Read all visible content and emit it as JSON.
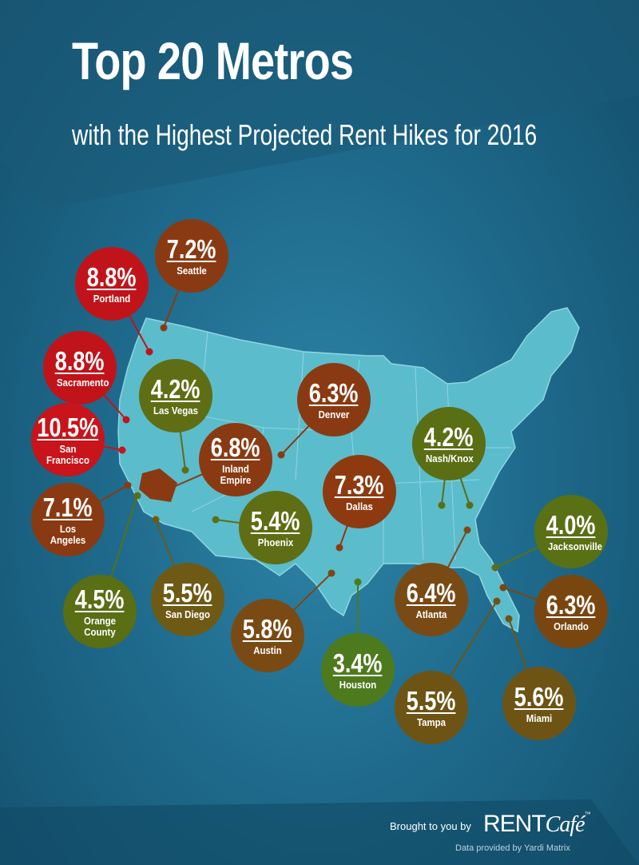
{
  "header": {
    "title": "Top 20 Metros",
    "subtitle": "with the Highest Projected Rent Hikes for 2016"
  },
  "metros": [
    {
      "rate": "7.2%",
      "city": "Seattle",
      "color": "#8a3a12"
    },
    {
      "rate": "8.8%",
      "city": "Portland",
      "color": "#c0141a"
    },
    {
      "rate": "8.8%",
      "city": "Sacramento",
      "color": "#c0141a"
    },
    {
      "rate": "10.5%",
      "city": "San Francisco",
      "color": "#c8141a"
    },
    {
      "rate": "4.2%",
      "city": "Las Vegas",
      "color": "#5f6e14"
    },
    {
      "rate": "6.3%",
      "city": "Denver",
      "color": "#8a3a12"
    },
    {
      "rate": "6.8%",
      "city": "Inland Empire",
      "color": "#8a3a12"
    },
    {
      "rate": "4.2%",
      "city": "Nash/Knox",
      "color": "#5a6e14"
    },
    {
      "rate": "7.3%",
      "city": "Dallas",
      "color": "#8e3a10"
    },
    {
      "rate": "7.1%",
      "city": "Los Angeles",
      "color": "#8a3a12"
    },
    {
      "rate": "5.4%",
      "city": "Phoenix",
      "color": "#5f6e14"
    },
    {
      "rate": "4.0%",
      "city": "Jacksonville",
      "color": "#5a7014"
    },
    {
      "rate": "4.5%",
      "city": "Orange County",
      "color": "#5a6e14"
    },
    {
      "rate": "5.5%",
      "city": "San Diego",
      "color": "#6e5a14"
    },
    {
      "rate": "6.4%",
      "city": "Atlanta",
      "color": "#7a4a14"
    },
    {
      "rate": "6.3%",
      "city": "Orlando",
      "color": "#7a4610"
    },
    {
      "rate": "5.8%",
      "city": "Austin",
      "color": "#7a4a14"
    },
    {
      "rate": "3.4%",
      "city": "Houston",
      "color": "#4e7a1e"
    },
    {
      "rate": "5.5%",
      "city": "Tampa",
      "color": "#6e5414"
    },
    {
      "rate": "5.6%",
      "city": "Miami",
      "color": "#6e5414"
    }
  ],
  "footer": {
    "brought": "Brought to you by",
    "brand": "RENT",
    "brand_script": "Café",
    "trademark": "™",
    "credit": "Data provided by Yardi Matrix"
  }
}
